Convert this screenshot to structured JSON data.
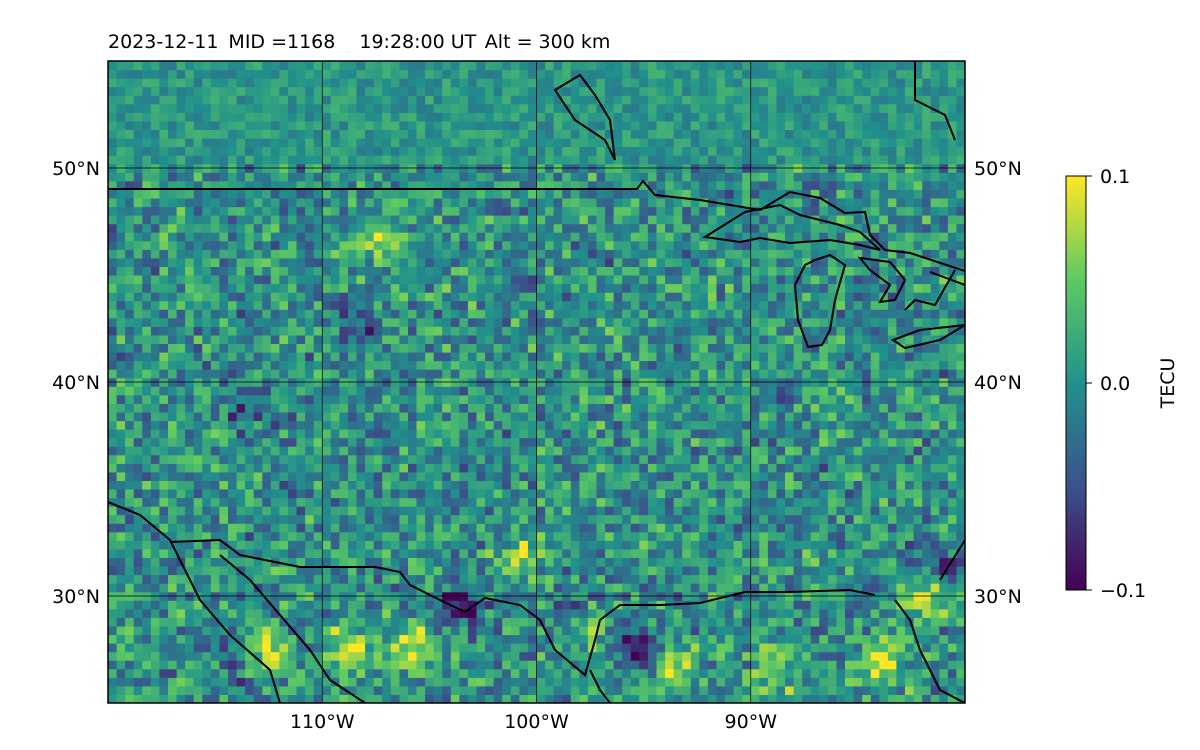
{
  "header": {
    "date": "2023-12-11",
    "mid": "MID =1168",
    "time": "19:28:00  UT",
    "altitude": "Alt = 300 km"
  },
  "chart_data": {
    "type": "heatmap",
    "title": "2023-12-11  MID =1168    19:28:00  UT  Alt = 300 km",
    "projection": "map (plate carree)",
    "xlim": [
      -120,
      -80
    ],
    "ylim": [
      25,
      55
    ],
    "x_ticks": [
      -110,
      -100,
      -90
    ],
    "x_tick_labels": [
      "110°W",
      "100°W",
      "90°W"
    ],
    "y_ticks": [
      30,
      40,
      50
    ],
    "y_tick_labels": [
      "30°N",
      "40°N",
      "50°N"
    ],
    "grid": true,
    "colormap": "viridis",
    "colorbar": {
      "label": "TECU",
      "min": -0.1,
      "max": 0.1,
      "ticks": [
        0.1,
        0.0,
        -0.1
      ],
      "tick_labels": [
        "0.1",
        "0.0",
        "−0.1"
      ],
      "position": "right"
    },
    "field_description": "Differential TEC perturbation map over North America, mostly near 0 TECU with small-scale fluctuations; stronger positive (yellow) and negative (purple) patches along the southern edge near 25–30°N.",
    "hotspots": [
      {
        "lon": -113,
        "lat": 27.2,
        "value": 0.1
      },
      {
        "lon": -109,
        "lat": 27.4,
        "value": 0.1
      },
      {
        "lon": -106,
        "lat": 27.5,
        "value": 0.09
      },
      {
        "lon": -98,
        "lat": 28.5,
        "value": 0.08
      },
      {
        "lon": -94,
        "lat": 26.5,
        "value": 0.09
      },
      {
        "lon": -89,
        "lat": 26.5,
        "value": 0.08
      },
      {
        "lon": -84,
        "lat": 26.7,
        "value": 0.1
      },
      {
        "lon": -82,
        "lat": 29.8,
        "value": 0.08
      },
      {
        "lon": -107.5,
        "lat": 46.7,
        "value": 0.08
      },
      {
        "lon": -101,
        "lat": 31.8,
        "value": 0.06
      },
      {
        "lon": -95.5,
        "lat": 27.3,
        "value": -0.1
      },
      {
        "lon": -104,
        "lat": 29.2,
        "value": -0.09
      },
      {
        "lon": -114,
        "lat": 26.8,
        "value": -0.07
      },
      {
        "lon": -98.5,
        "lat": 29.0,
        "value": -0.08
      },
      {
        "lon": -81.5,
        "lat": 31.1,
        "value": -0.06
      },
      {
        "lon": -113.5,
        "lat": 38.5,
        "value": -0.05
      },
      {
        "lon": -108.5,
        "lat": 42.3,
        "value": -0.05
      }
    ],
    "coastlines": "North America coastlines, Canada–US border, US–Mexico border, Great Lakes, Hudson Bay edge"
  },
  "colors": {
    "viridis": [
      "#440154",
      "#3b528b",
      "#21918c",
      "#5ec962",
      "#fde725"
    ],
    "background": "#ffffff",
    "lines": "#000000"
  }
}
